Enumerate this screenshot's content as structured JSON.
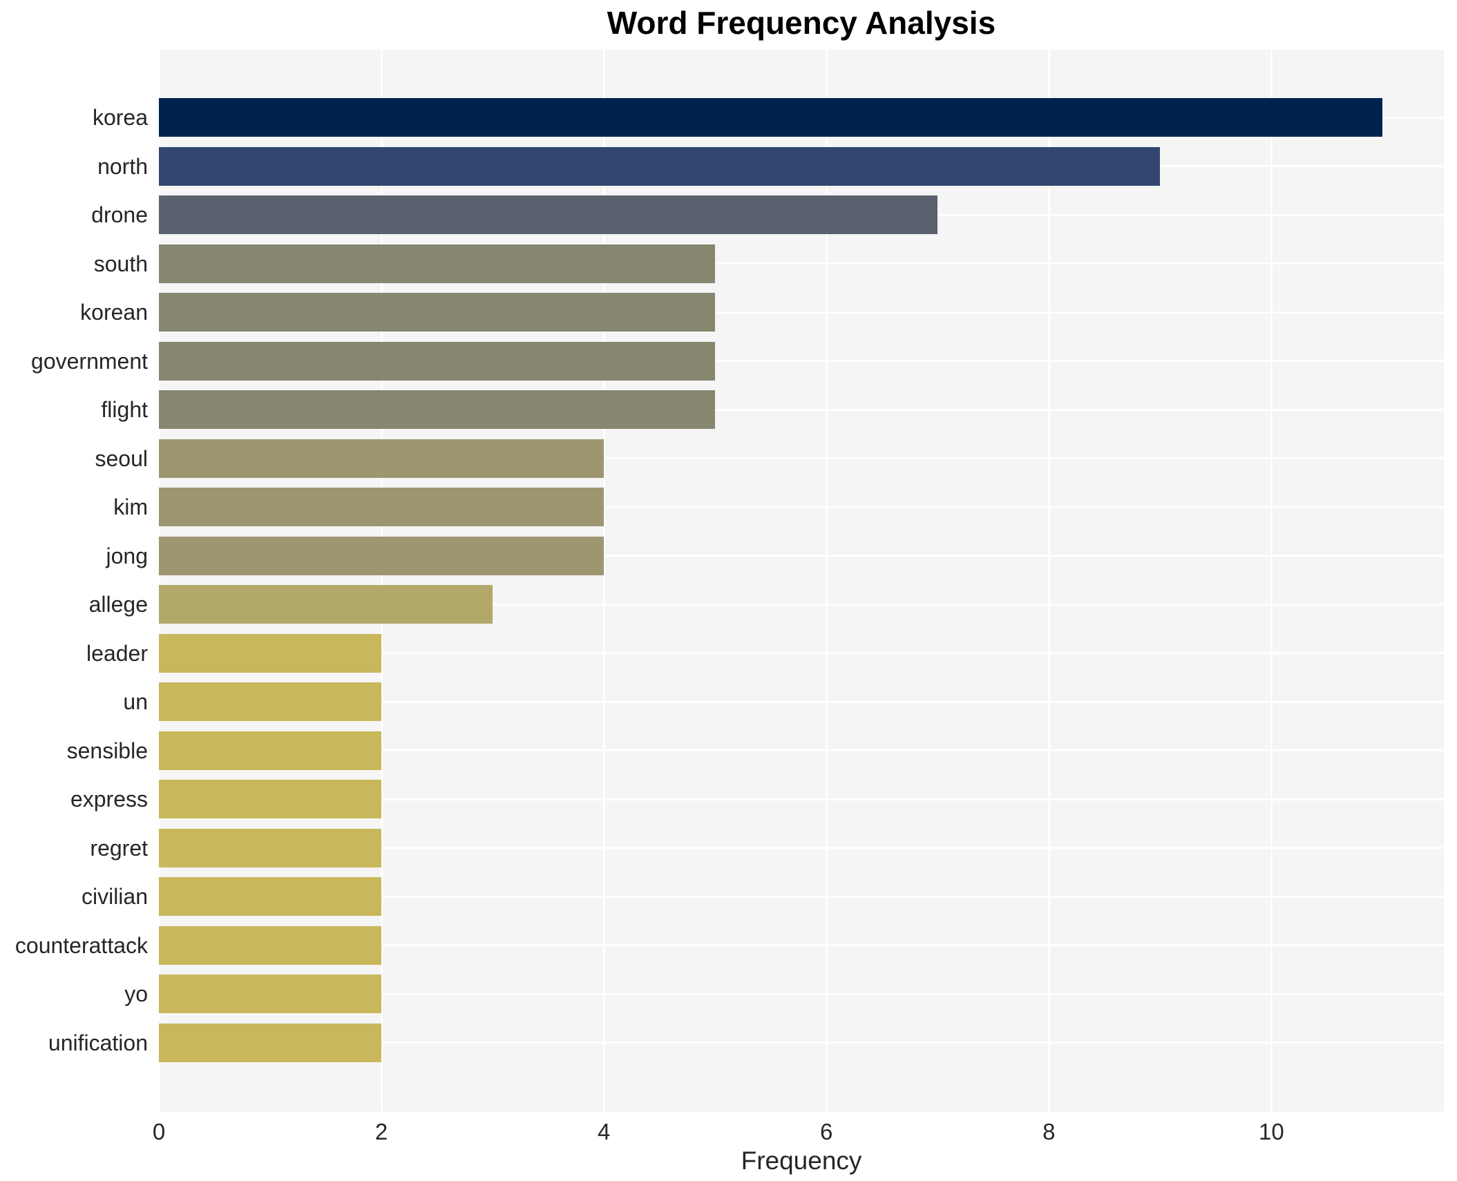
{
  "title": "Word Frequency Analysis",
  "xlabel": "Frequency",
  "colors": {
    "figure_bg": "#ffffff",
    "plot_bg": "#f5f5f6",
    "grid": "#ffffff",
    "text": "#262626",
    "title_text": "#000000"
  },
  "chart_data": {
    "type": "bar",
    "orientation": "horizontal",
    "title": "Word Frequency Analysis",
    "xlabel": "Frequency",
    "ylabel": "",
    "categories": [
      "korea",
      "north",
      "drone",
      "south",
      "korean",
      "government",
      "flight",
      "seoul",
      "kim",
      "jong",
      "allege",
      "leader",
      "un",
      "sensible",
      "express",
      "regret",
      "civilian",
      "counterattack",
      "yo",
      "unification"
    ],
    "values": [
      11,
      9,
      7,
      5,
      5,
      5,
      5,
      4,
      4,
      4,
      3,
      2,
      2,
      2,
      2,
      2,
      2,
      2,
      2,
      2
    ],
    "bar_colors": [
      "#00234e",
      "#334670",
      "#5c6170",
      "#87866f",
      "#87866f",
      "#87866f",
      "#87866f",
      "#9e9670",
      "#9e9670",
      "#9e9670",
      "#b2a86a",
      "#c9b75b",
      "#c9b75b",
      "#c9b75b",
      "#c9b75b",
      "#c9b75b",
      "#c9b75b",
      "#c9b75b",
      "#c9b75b",
      "#c9b75b"
    ],
    "xlim": [
      0,
      11.55
    ],
    "xticks": [
      0,
      2,
      4,
      6,
      8,
      10
    ],
    "grid": true,
    "legend": null
  }
}
